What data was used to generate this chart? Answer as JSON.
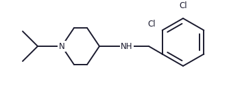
{
  "bg_color": "#ffffff",
  "line_color": "#1a1a2e",
  "line_width": 1.4,
  "font_size": 8.5,
  "figsize": [
    3.34,
    1.5
  ],
  "dpi": 100,
  "xlim": [
    0,
    334
  ],
  "ylim": [
    0,
    150
  ]
}
